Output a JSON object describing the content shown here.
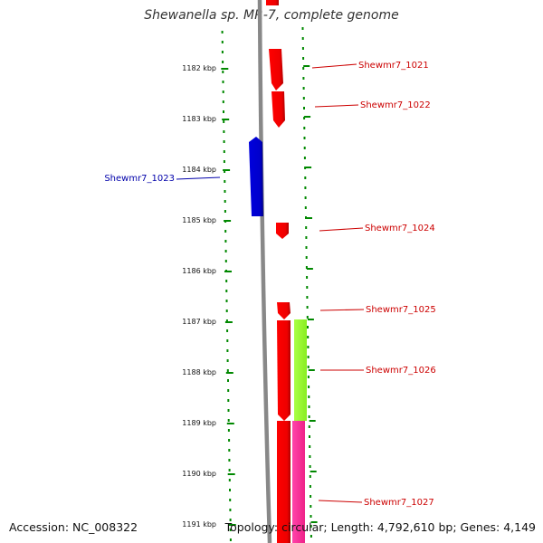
{
  "title": "Shewanella sp. MR-7, complete genome",
  "footer": {
    "accession_label": "Accession: NC_008322",
    "topology_label": "Topology: circular; Length: 4,792,610 bp; Genes: 4,149"
  },
  "ruler": {
    "ticks": [
      "1182 kbp",
      "1183 kbp",
      "1184 kbp",
      "1185 kbp",
      "1186 kbp",
      "1187 kbp",
      "1188 kbp",
      "1189 kbp",
      "1190 kbp",
      "1191 kbp"
    ]
  },
  "genes": [
    {
      "label": "Shewmr7_1021",
      "strand": "forward",
      "color": "#ff0000"
    },
    {
      "label": "Shewmr7_1022",
      "strand": "forward",
      "color": "#ff0000"
    },
    {
      "label": "Shewmr7_1023",
      "strand": "reverse",
      "color": "#0000cc"
    },
    {
      "label": "Shewmr7_1024",
      "strand": "forward",
      "color": "#ff0000"
    },
    {
      "label": "Shewmr7_1025",
      "strand": "forward",
      "color": "#ff0000"
    },
    {
      "label": "Shewmr7_1026",
      "strand": "forward",
      "color": "#ff0000"
    },
    {
      "label": "Shewmr7_1027",
      "strand": "forward",
      "color": "#ff0000"
    }
  ],
  "features": [
    {
      "name": "lime-feature",
      "color": "#99ff33"
    },
    {
      "name": "magenta-feature",
      "color": "#ff3399"
    }
  ],
  "colors": {
    "forward_gene": "#ff0000",
    "reverse_gene": "#0000cc",
    "backbone": "#888888",
    "ruler": "#008800",
    "label_forward": "#cc0000",
    "label_reverse": "#0000aa"
  }
}
